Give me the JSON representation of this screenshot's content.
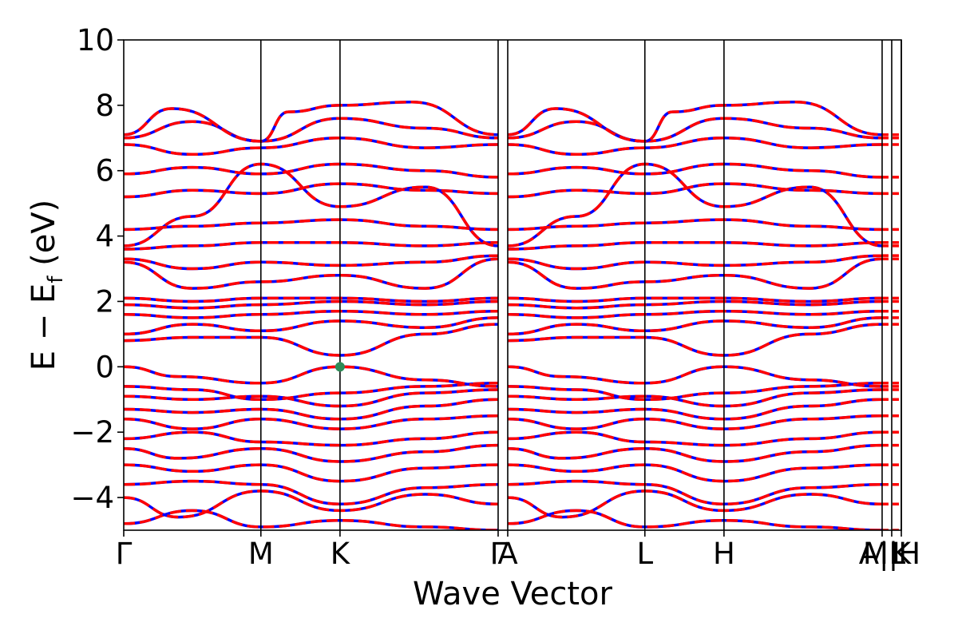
{
  "chart_data": {
    "type": "line",
    "title": "",
    "xlabel": "Wave Vector",
    "ylabel": "E − E",
    "ylabel_subscript": "f",
    "ylabel_unit": " (eV)",
    "ylim": [
      -5,
      10
    ],
    "yticks": [
      {
        "value": 10,
        "label": "10"
      },
      {
        "value": 8,
        "label": "8"
      },
      {
        "value": 6,
        "label": "6"
      },
      {
        "value": 4,
        "label": "4"
      },
      {
        "value": 2,
        "label": "2"
      },
      {
        "value": 0,
        "label": "0"
      },
      {
        "value": -2,
        "label": "−2"
      },
      {
        "value": -4,
        "label": "−4"
      }
    ],
    "kpoints": [
      {
        "label": "Γ",
        "pos": 0.0
      },
      {
        "label": "M",
        "pos": 1.0
      },
      {
        "label": "K",
        "pos": 1.577
      },
      {
        "label": "Γ",
        "pos": 2.73
      },
      {
        "label": "A",
        "pos": 2.8
      },
      {
        "label": "L",
        "pos": 3.8
      },
      {
        "label": "H",
        "pos": 4.377
      },
      {
        "label": "A|L",
        "pos": 5.53
      },
      {
        "label": "M|H",
        "pos": 5.6
      },
      {
        "label": "K",
        "pos": 5.67
      }
    ],
    "kpath_vertical_lines": [
      1.0,
      1.577,
      2.73,
      2.8,
      3.8,
      4.377,
      5.53,
      5.6,
      5.67
    ],
    "xlim": [
      0.0,
      5.67
    ],
    "grid": false,
    "legend": "none",
    "highlight_point": {
      "k": 1.577,
      "energy": 0.0,
      "color": "#2e8b57"
    },
    "series": [
      {
        "style": "solid",
        "color": "#0000ff",
        "lw": 3.5
      },
      {
        "style": "dashed",
        "color": "#ff0000",
        "lw": 3.5
      }
    ],
    "bands": [
      {
        "points": [
          [
            0,
            -4.8
          ],
          [
            0.5,
            -4.4
          ],
          [
            1.0,
            -4.9
          ],
          [
            1.577,
            -4.7
          ],
          [
            2.2,
            -4.9
          ],
          [
            2.73,
            -5.0
          ]
        ]
      },
      {
        "points": [
          [
            0,
            -4.0
          ],
          [
            0.4,
            -4.6
          ],
          [
            1.0,
            -3.8
          ],
          [
            1.577,
            -4.4
          ],
          [
            2.2,
            -3.9
          ],
          [
            2.73,
            -4.2
          ]
        ]
      },
      {
        "points": [
          [
            0,
            -3.6
          ],
          [
            0.5,
            -3.5
          ],
          [
            1.0,
            -3.6
          ],
          [
            1.577,
            -4.2
          ],
          [
            2.2,
            -3.7
          ],
          [
            2.73,
            -3.6
          ]
        ]
      },
      {
        "points": [
          [
            0,
            -3.0
          ],
          [
            0.5,
            -3.2
          ],
          [
            1.0,
            -3.0
          ],
          [
            1.577,
            -3.5
          ],
          [
            2.2,
            -3.1
          ],
          [
            2.73,
            -3.0
          ]
        ]
      },
      {
        "points": [
          [
            0,
            -2.5
          ],
          [
            0.4,
            -2.8
          ],
          [
            1.0,
            -2.5
          ],
          [
            1.577,
            -2.9
          ],
          [
            2.2,
            -2.6
          ],
          [
            2.73,
            -2.4
          ]
        ]
      },
      {
        "points": [
          [
            0,
            -2.2
          ],
          [
            0.5,
            -2.0
          ],
          [
            1.0,
            -2.3
          ],
          [
            1.577,
            -2.4
          ],
          [
            2.2,
            -2.2
          ],
          [
            2.73,
            -2.0
          ]
        ]
      },
      {
        "points": [
          [
            0,
            -1.6
          ],
          [
            0.5,
            -1.9
          ],
          [
            1.0,
            -1.6
          ],
          [
            1.577,
            -1.9
          ],
          [
            2.2,
            -1.6
          ],
          [
            2.73,
            -1.5
          ]
        ]
      },
      {
        "points": [
          [
            0,
            -1.3
          ],
          [
            0.5,
            -1.4
          ],
          [
            1.0,
            -1.3
          ],
          [
            1.577,
            -1.6
          ],
          [
            2.2,
            -1.2
          ],
          [
            2.73,
            -1.0
          ]
        ]
      },
      {
        "points": [
          [
            0,
            -0.9
          ],
          [
            0.5,
            -1.0
          ],
          [
            1.0,
            -0.9
          ],
          [
            1.577,
            -1.2
          ],
          [
            2.2,
            -0.8
          ],
          [
            2.73,
            -0.7
          ]
        ]
      },
      {
        "points": [
          [
            0,
            -0.6
          ],
          [
            0.5,
            -0.7
          ],
          [
            1.0,
            -1.0
          ],
          [
            1.577,
            -0.8
          ],
          [
            2.2,
            -0.6
          ],
          [
            2.73,
            -0.5
          ]
        ]
      },
      {
        "points": [
          [
            0,
            0.0
          ],
          [
            0.4,
            -0.3
          ],
          [
            1.0,
            -0.5
          ],
          [
            1.577,
            0.0
          ],
          [
            2.2,
            -0.4
          ],
          [
            2.73,
            -0.6
          ]
        ]
      },
      {
        "points": [
          [
            0,
            0.8
          ],
          [
            0.5,
            0.9
          ],
          [
            1.0,
            0.9
          ],
          [
            1.577,
            0.35
          ],
          [
            2.2,
            1.0
          ],
          [
            2.73,
            1.3
          ]
        ]
      },
      {
        "points": [
          [
            0,
            1.0
          ],
          [
            0.5,
            1.3
          ],
          [
            1.0,
            1.1
          ],
          [
            1.577,
            1.4
          ],
          [
            2.2,
            1.2
          ],
          [
            2.73,
            1.5
          ]
        ]
      },
      {
        "points": [
          [
            0,
            1.6
          ],
          [
            0.5,
            1.5
          ],
          [
            1.0,
            1.6
          ],
          [
            1.577,
            1.7
          ],
          [
            2.2,
            1.6
          ],
          [
            2.73,
            1.7
          ]
        ]
      },
      {
        "points": [
          [
            0,
            1.9
          ],
          [
            0.5,
            1.8
          ],
          [
            1.0,
            1.9
          ],
          [
            1.577,
            2.0
          ],
          [
            2.2,
            1.9
          ],
          [
            2.73,
            2.0
          ]
        ]
      },
      {
        "points": [
          [
            0,
            2.1
          ],
          [
            0.5,
            2.0
          ],
          [
            1.0,
            2.1
          ],
          [
            1.577,
            2.1
          ],
          [
            2.2,
            2.0
          ],
          [
            2.73,
            2.1
          ]
        ]
      },
      {
        "points": [
          [
            0,
            3.2
          ],
          [
            0.5,
            2.4
          ],
          [
            1.0,
            2.6
          ],
          [
            1.577,
            2.8
          ],
          [
            2.2,
            2.4
          ],
          [
            2.73,
            3.3
          ]
        ]
      },
      {
        "points": [
          [
            0,
            3.3
          ],
          [
            0.5,
            3.0
          ],
          [
            1.0,
            3.2
          ],
          [
            1.577,
            3.1
          ],
          [
            2.2,
            3.2
          ],
          [
            2.73,
            3.4
          ]
        ]
      },
      {
        "points": [
          [
            0,
            3.6
          ],
          [
            0.5,
            3.7
          ],
          [
            1.0,
            3.8
          ],
          [
            1.577,
            3.8
          ],
          [
            2.2,
            3.7
          ],
          [
            2.73,
            3.8
          ]
        ]
      },
      {
        "points": [
          [
            0,
            3.7
          ],
          [
            0.5,
            4.6
          ],
          [
            1.0,
            6.2
          ],
          [
            1.577,
            4.9
          ],
          [
            2.2,
            5.5
          ],
          [
            2.73,
            3.7
          ]
        ]
      },
      {
        "points": [
          [
            0,
            4.2
          ],
          [
            0.5,
            4.3
          ],
          [
            1.0,
            4.4
          ],
          [
            1.577,
            4.5
          ],
          [
            2.2,
            4.3
          ],
          [
            2.73,
            4.2
          ]
        ]
      },
      {
        "points": [
          [
            0,
            5.2
          ],
          [
            0.5,
            5.4
          ],
          [
            1.0,
            5.3
          ],
          [
            1.577,
            5.6
          ],
          [
            2.2,
            5.4
          ],
          [
            2.73,
            5.3
          ]
        ]
      },
      {
        "points": [
          [
            0,
            5.9
          ],
          [
            0.5,
            6.1
          ],
          [
            1.0,
            5.9
          ],
          [
            1.577,
            6.2
          ],
          [
            2.2,
            6.0
          ],
          [
            2.73,
            5.8
          ]
        ]
      },
      {
        "points": [
          [
            0,
            6.8
          ],
          [
            0.5,
            6.5
          ],
          [
            1.0,
            6.7
          ],
          [
            1.577,
            7.0
          ],
          [
            2.2,
            6.7
          ],
          [
            2.73,
            6.8
          ]
        ]
      },
      {
        "points": [
          [
            0,
            7.0
          ],
          [
            0.5,
            7.5
          ],
          [
            1.0,
            6.9
          ],
          [
            1.577,
            7.6
          ],
          [
            2.2,
            7.3
          ],
          [
            2.73,
            7.0
          ]
        ]
      },
      {
        "points": [
          [
            0,
            7.1
          ],
          [
            0.35,
            7.9
          ],
          [
            1.0,
            6.9
          ],
          [
            1.2,
            7.8
          ],
          [
            1.577,
            8.0
          ],
          [
            2.1,
            8.1
          ],
          [
            2.73,
            7.1
          ]
        ]
      }
    ]
  }
}
